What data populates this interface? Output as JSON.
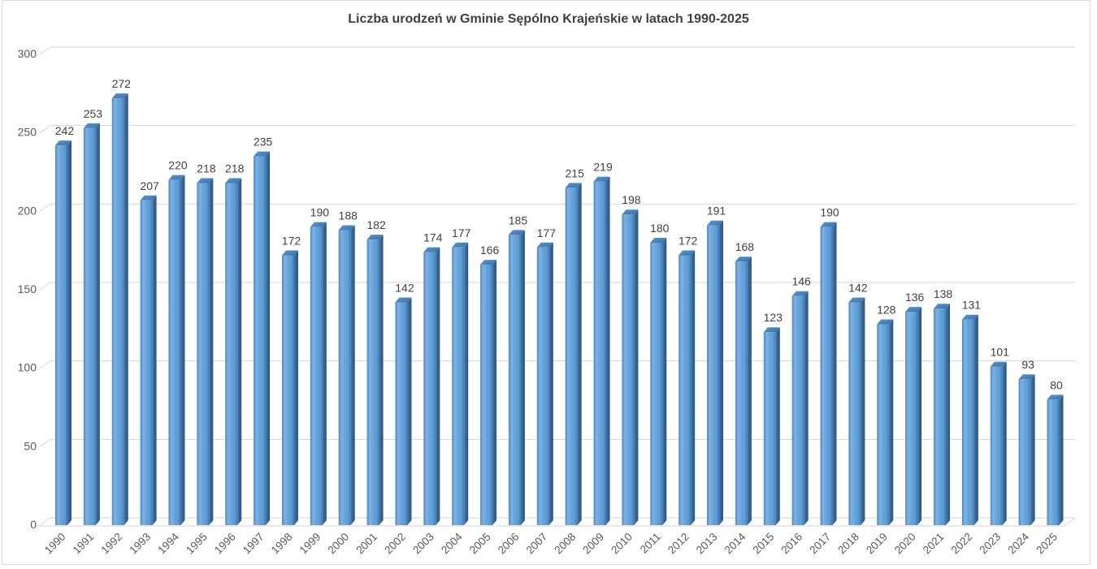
{
  "chart_data": {
    "type": "bar",
    "style": "3d-column",
    "title": "Liczba urodzeń w Gminie Sępólno Krajeńskie w latach 1990-2025",
    "categories": [
      "1990",
      "1991",
      "1992",
      "1993",
      "1994",
      "1995",
      "1996",
      "1997",
      "1998",
      "1999",
      "2000",
      "2001",
      "2002",
      "2003",
      "2004",
      "2005",
      "2006",
      "2007",
      "2008",
      "2009",
      "2010",
      "2011",
      "2012",
      "2013",
      "2014",
      "2015",
      "2016",
      "2017",
      "2018",
      "2019",
      "2020",
      "2021",
      "2022",
      "2023",
      "2024",
      "2025"
    ],
    "values": [
      242,
      253,
      272,
      207,
      220,
      218,
      218,
      235,
      172,
      190,
      188,
      182,
      142,
      174,
      177,
      166,
      185,
      177,
      215,
      219,
      198,
      180,
      172,
      191,
      168,
      123,
      146,
      190,
      142,
      128,
      136,
      138,
      131,
      101,
      93,
      80
    ],
    "xlabel": "",
    "ylabel": "",
    "ylim": [
      0,
      300
    ],
    "yticks": [
      0,
      50,
      100,
      150,
      200,
      250,
      300
    ],
    "grid": true,
    "legend": "none",
    "data_labels": true,
    "colors": {
      "bar_front_edge": "#4a7fb5",
      "bar_front_light": "#7db2e4",
      "bar_front_mid": "#5b9bd5",
      "bar_front_dark": "#4076ad",
      "bar_side_light": "#447ab0",
      "bar_side_dark": "#2f5880",
      "bar_top_light": "#5f97c9",
      "bar_top_dark": "#3e6f9f",
      "grid": "#d6d6d6",
      "axis_text": "#595959",
      "label_text": "#404040",
      "title_text": "#3f3f3f",
      "frame": "#d9d9d9",
      "background": "#ffffff"
    }
  }
}
